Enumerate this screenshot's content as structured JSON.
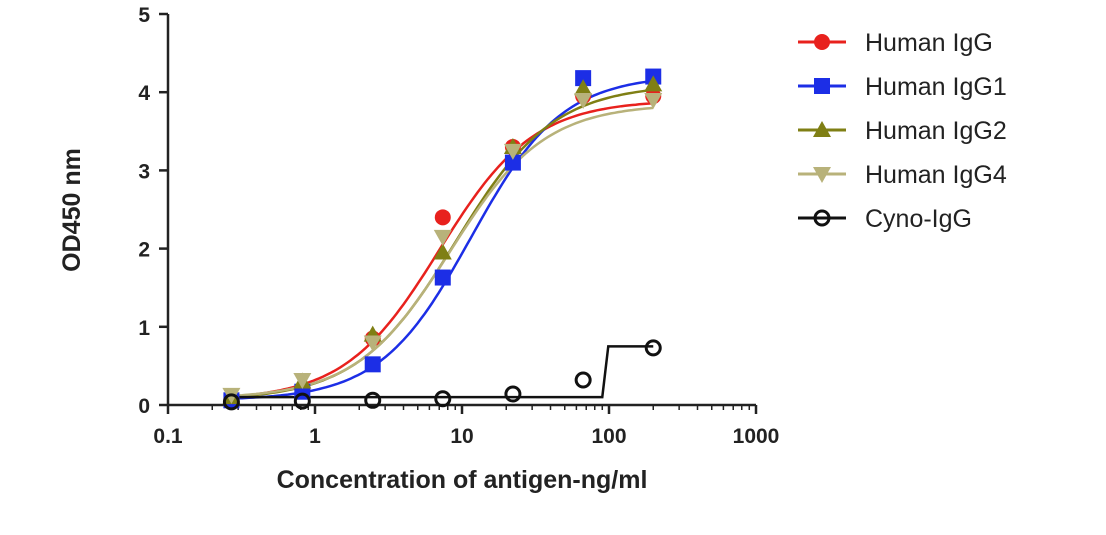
{
  "chart_data": {
    "type": "scatter",
    "title": "",
    "xlabel": "Concentration of antigen-ng/ml",
    "ylabel": "OD450 nm",
    "xscale": "log",
    "xlim": [
      0.1,
      1000
    ],
    "ylim": [
      0,
      5
    ],
    "xticks": [
      0.1,
      1,
      10,
      100,
      1000
    ],
    "xtick_labels": [
      "0.1",
      "1",
      "10",
      "100",
      "1000"
    ],
    "yticks": [
      0,
      1,
      2,
      3,
      4,
      5
    ],
    "ytick_labels": [
      "0",
      "1",
      "2",
      "3",
      "4",
      "5"
    ],
    "grid": false,
    "legend_position": "right",
    "x": [
      0.27,
      0.82,
      2.47,
      7.4,
      22.2,
      66.7,
      200
    ],
    "series": [
      {
        "name": "Human IgG",
        "color": "#e8211d",
        "marker": "circle",
        "values": [
          0.08,
          0.2,
          0.85,
          2.4,
          3.3,
          3.95,
          3.95
        ],
        "fit": {
          "bottom": 0.06,
          "top": 3.9,
          "ec50": 7.0,
          "hill": 1.35
        }
      },
      {
        "name": "Human IgG1",
        "color": "#1c2ee6",
        "marker": "square",
        "values": [
          0.06,
          0.17,
          0.52,
          1.63,
          3.1,
          4.18,
          4.2
        ],
        "fit": {
          "bottom": 0.06,
          "top": 4.22,
          "ec50": 11.5,
          "hill": 1.4
        }
      },
      {
        "name": "Human IgG2",
        "color": "#7f7f14",
        "marker": "triangle-up",
        "values": [
          0.1,
          0.3,
          0.9,
          1.95,
          3.3,
          4.05,
          4.1
        ],
        "fit": {
          "bottom": 0.06,
          "top": 4.1,
          "ec50": 9.0,
          "hill": 1.3
        }
      },
      {
        "name": "Human IgG4",
        "color": "#b8b27a",
        "marker": "triangle-down",
        "values": [
          0.13,
          0.32,
          0.8,
          2.15,
          3.25,
          3.9,
          3.9
        ],
        "fit": {
          "bottom": 0.08,
          "top": 3.85,
          "ec50": 8.3,
          "hill": 1.35
        }
      },
      {
        "name": "Cyno-IgG",
        "color": "#111111",
        "marker": "open-circle",
        "values": [
          0.04,
          0.05,
          0.06,
          0.08,
          0.14,
          0.32,
          0.73
        ],
        "fit": {
          "step": true,
          "low": 0.1,
          "high": 0.75,
          "at": 90
        }
      }
    ]
  }
}
